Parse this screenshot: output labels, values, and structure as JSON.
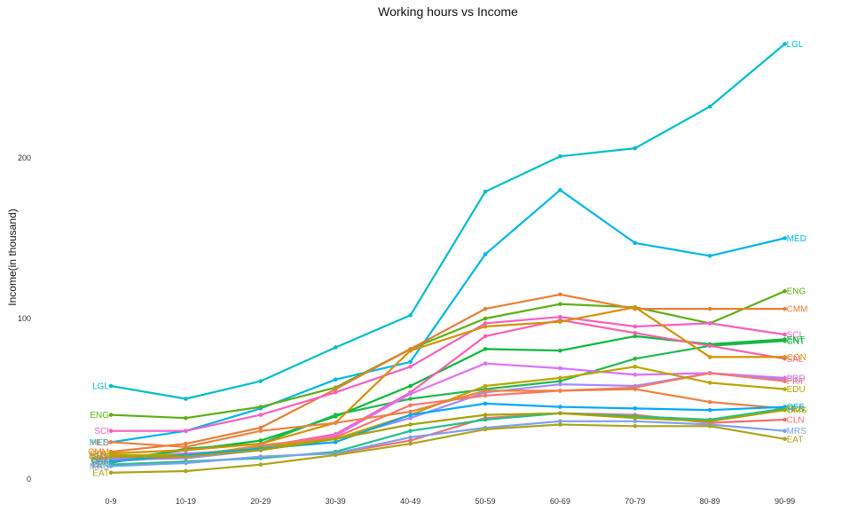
{
  "chart_data": {
    "type": "line",
    "title": "Working hours vs Income",
    "xlabel": "",
    "ylabel": "Income(in thousand)",
    "categories": [
      "0-9",
      "10-19",
      "20-29",
      "30-39",
      "40-49",
      "50-59",
      "60-69",
      "70-79",
      "80-89",
      "90-99"
    ],
    "y_ticks": [
      "0",
      "100",
      "200"
    ],
    "y_tick_values": [
      0,
      100,
      200
    ],
    "ylim": [
      -5,
      280
    ],
    "grid": false,
    "legend": "direct labels at both line ends",
    "series": [
      {
        "name": "LGL",
        "color": "#00BDC9",
        "label_start": true,
        "values": [
          58,
          50,
          61,
          82,
          102,
          179,
          201,
          206,
          232,
          271
        ]
      },
      {
        "name": "MED",
        "color": "#00B5E8",
        "label_start": true,
        "values": [
          23,
          30,
          44,
          62,
          73,
          140,
          180,
          147,
          139,
          150
        ]
      },
      {
        "name": "ENG",
        "color": "#5CAF14",
        "label_start": true,
        "values": [
          40,
          38,
          45,
          57,
          81,
          100,
          109,
          107,
          97,
          117
        ]
      },
      {
        "name": "CMM",
        "color": "#E87E37",
        "label_start": true,
        "values": [
          17,
          22,
          32,
          56,
          81,
          106,
          115,
          106,
          106,
          106
        ]
      },
      {
        "name": "SCI",
        "color": "#F560C0",
        "label_start": true,
        "values": [
          30,
          30,
          40,
          54,
          70,
          97,
          101,
          95,
          97,
          90
        ]
      },
      {
        "name": "ENT",
        "color": "#08B83A",
        "label_start": true,
        "values": [
          12,
          18,
          24,
          39,
          58,
          81,
          80,
          89,
          84,
          87
        ]
      },
      {
        "name": "CNT",
        "color": "#21B94F",
        "label_start": false,
        "values": [
          10,
          19,
          22,
          40,
          50,
          56,
          61,
          75,
          83,
          86
        ]
      },
      {
        "name": "SAL",
        "color": "#FF5EAF",
        "label_start": true,
        "values": [
          14,
          15,
          20,
          28,
          54,
          89,
          99,
          91,
          83,
          75
        ]
      },
      {
        "name": "CON",
        "color": "#D39200",
        "label_start": true,
        "values": [
          16,
          18,
          22,
          35,
          80,
          95,
          98,
          107,
          76,
          76
        ]
      },
      {
        "name": "PRD",
        "color": "#DB72FB",
        "label_start": true,
        "values": [
          13,
          16,
          18,
          27,
          53,
          72,
          69,
          65,
          66,
          63
        ]
      },
      {
        "name": "FIN",
        "color": "#A58AFF",
        "label_start": true,
        "values": [
          12,
          13,
          18,
          25,
          38,
          54,
          59,
          58,
          66,
          62
        ]
      },
      {
        "name": "PRT",
        "color": "#F8766D",
        "label_start": true,
        "values": [
          11,
          14,
          21,
          26,
          46,
          52,
          55,
          57,
          66,
          61
        ]
      },
      {
        "name": "EDU",
        "color": "#B9A600",
        "label_start": true,
        "values": [
          15,
          15,
          20,
          25,
          40,
          58,
          63,
          70,
          60,
          56
        ]
      },
      {
        "name": "HLS",
        "color": "#ED8141",
        "label_start": true,
        "values": [
          23,
          20,
          30,
          35,
          42,
          55,
          55,
          56,
          48,
          44
        ]
      },
      {
        "name": "OFF",
        "color": "#00A9FF",
        "label_start": true,
        "values": [
          11,
          15,
          19,
          23,
          40,
          47,
          45,
          44,
          43,
          45
        ]
      },
      {
        "name": "CLN",
        "color": "#F06F6D",
        "label_start": true,
        "values": [
          9,
          10,
          14,
          16,
          24,
          38,
          41,
          40,
          35,
          37
        ]
      },
      {
        "name": "TRN",
        "color": "#22C08E",
        "label_start": true,
        "values": [
          9,
          11,
          13,
          17,
          30,
          37,
          41,
          39,
          37,
          44
        ]
      },
      {
        "name": "MRS",
        "color": "#7CA0F2",
        "label_start": true,
        "values": [
          8,
          10,
          14,
          16,
          26,
          32,
          36,
          36,
          34,
          30
        ]
      },
      {
        "name": "OMS",
        "color": "#A6A300",
        "label_start": true,
        "values": [
          14,
          14,
          18,
          25,
          34,
          40,
          41,
          38,
          36,
          43
        ]
      },
      {
        "name": "EAT",
        "color": "#ABA41B",
        "label_start": true,
        "values": [
          4,
          5,
          9,
          15,
          22,
          31,
          34,
          33,
          33,
          25
        ]
      }
    ]
  }
}
